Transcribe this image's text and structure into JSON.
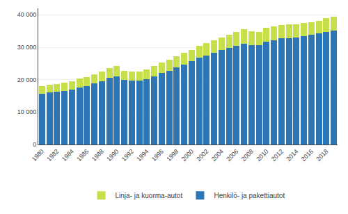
{
  "chart_data": {
    "type": "bar",
    "stacked": true,
    "grid": true,
    "legend": "bottom",
    "categories": [
      "1980",
      null,
      "1982",
      null,
      "1984",
      null,
      "1986",
      null,
      "1988",
      null,
      "1990",
      null,
      "1992",
      null,
      "1994",
      null,
      "1996",
      null,
      "1998",
      null,
      "2000",
      null,
      "2002",
      null,
      "2004",
      null,
      "2006",
      null,
      "2008",
      null,
      "2010",
      null,
      "2012",
      null,
      "2014",
      null,
      "2016",
      null,
      "2018",
      null
    ],
    "series": [
      {
        "name": "Henkilö- ja pakettiautot",
        "color": "#2E75B6",
        "values": [
          15600,
          16000,
          16200,
          16500,
          16900,
          17600,
          18000,
          18900,
          19500,
          20600,
          21100,
          19900,
          19700,
          19700,
          20200,
          21100,
          22000,
          22800,
          23700,
          24600,
          25700,
          26800,
          27400,
          28200,
          29100,
          29700,
          30500,
          31100,
          30700,
          30700,
          31800,
          32200,
          32700,
          32700,
          33000,
          33400,
          33800,
          34200,
          34800,
          35100
        ]
      },
      {
        "name": "Linja- ja kuorma-autot",
        "color": "#C5E04B",
        "values": [
          2400,
          2400,
          2400,
          2500,
          2600,
          2700,
          2700,
          2800,
          2900,
          3000,
          3100,
          2900,
          2800,
          2900,
          3000,
          3100,
          3200,
          3300,
          3500,
          3600,
          3500,
          3700,
          3800,
          3900,
          4000,
          4100,
          4300,
          4400,
          4200,
          4100,
          4300,
          4200,
          4200,
          4300,
          4100,
          4100,
          4000,
          4000,
          4200,
          4300
        ]
      }
    ],
    "ylim": [
      0,
      42000
    ],
    "yticks": [
      0,
      {
        "value": 10000,
        "label": "10 000"
      },
      {
        "value": 20000,
        "label": "20 000"
      },
      {
        "value": 30000,
        "label": "30 000"
      },
      {
        "value": 40000,
        "label": "40 000"
      }
    ]
  }
}
